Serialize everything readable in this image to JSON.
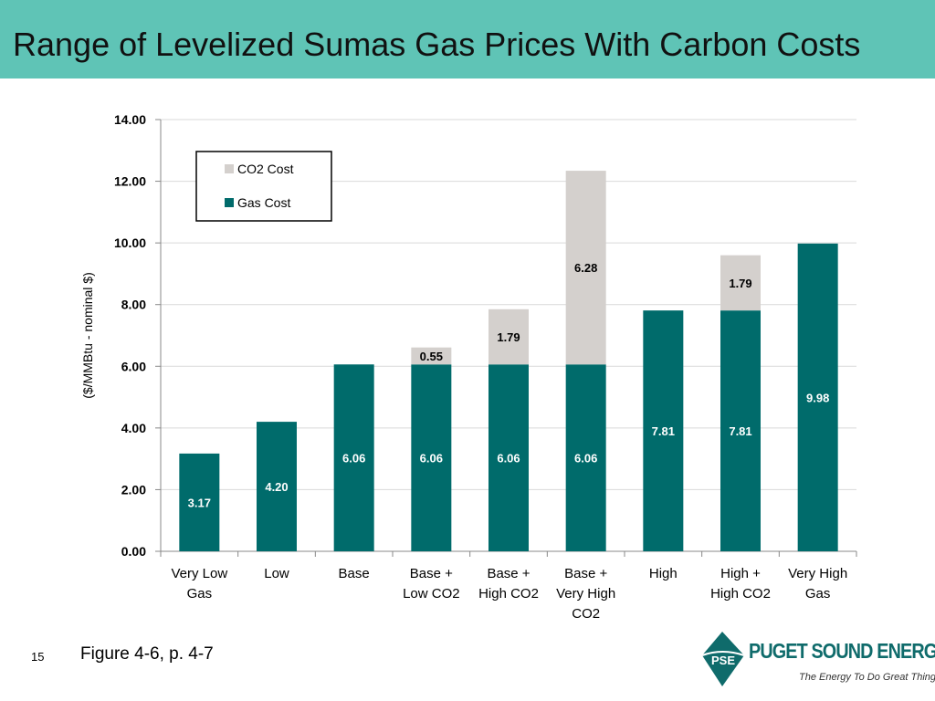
{
  "slide": {
    "title": "Range of Levelized Sumas Gas Prices With Carbon Costs",
    "slide_number": "15",
    "caption": "Figure 4-6, p. 4-7"
  },
  "logo": {
    "mark_text": "PSE",
    "name": "PUGET SOUND ENERGY",
    "tagline": "The Energy To Do Great Things",
    "color": "#0f6b6b"
  },
  "chart_data": {
    "type": "bar",
    "stacked": true,
    "categories": [
      [
        "Very Low",
        "Gas"
      ],
      [
        "Low"
      ],
      [
        "Base"
      ],
      [
        "Base +",
        "Low CO2"
      ],
      [
        "Base +",
        "High CO2"
      ],
      [
        "Base +",
        "Very High",
        "CO2"
      ],
      [
        "High"
      ],
      [
        "High +",
        "High CO2"
      ],
      [
        "Very High",
        "Gas"
      ]
    ],
    "series": [
      {
        "name": "Gas Cost",
        "color": "#006b6b",
        "values": [
          3.17,
          4.2,
          6.06,
          6.06,
          6.06,
          6.06,
          7.81,
          7.81,
          9.98
        ],
        "labels": [
          "3.17",
          "4.20",
          "6.06",
          "6.06",
          "6.06",
          "6.06",
          "7.81",
          "7.81",
          "9.98"
        ]
      },
      {
        "name": "CO2 Cost",
        "color": "#d4d0cd",
        "values": [
          0,
          0,
          0,
          0.55,
          1.79,
          6.28,
          0,
          1.79,
          0
        ],
        "labels": [
          "",
          "",
          "",
          "0.55",
          "1.79",
          "6.28",
          "",
          "1.79",
          ""
        ]
      }
    ],
    "ylabel": "($/MMBtu - nominal $)",
    "ylim": [
      0,
      14
    ],
    "yticks": [
      "0.00",
      "2.00",
      "4.00",
      "6.00",
      "8.00",
      "10.00",
      "12.00",
      "14.00"
    ],
    "ytick_values": [
      0,
      2,
      4,
      6,
      8,
      10,
      12,
      14
    ],
    "legend": {
      "placement": "top-left",
      "entries": [
        "CO2 Cost",
        "Gas Cost"
      ]
    },
    "grid": true
  }
}
